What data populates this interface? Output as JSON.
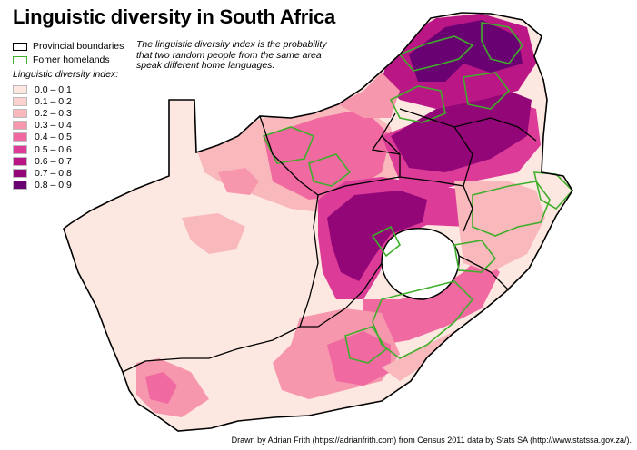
{
  "title": "Linguistic diversity in South Africa",
  "legend": {
    "provincial_label": "Provincial boundaries",
    "homelands_label": "Fomer homelands",
    "index_heading": "Linguistic diversity index:",
    "bins": [
      {
        "label": "0.0 – 0.1",
        "color": "#fde8e1"
      },
      {
        "label": "0.1 – 0.2",
        "color": "#fbd2d0"
      },
      {
        "label": "0.2 – 0.3",
        "color": "#f9b8bc"
      },
      {
        "label": "0.3 – 0.4",
        "color": "#f797ad"
      },
      {
        "label": "0.4 – 0.5",
        "color": "#f069a1"
      },
      {
        "label": "0.5 – 0.6",
        "color": "#dc3b97"
      },
      {
        "label": "0.6 – 0.7",
        "color": "#bb1686"
      },
      {
        "label": "0.7 – 0.8",
        "color": "#920678"
      },
      {
        "label": "0.8 – 0.9",
        "color": "#6a0172"
      }
    ]
  },
  "note": "The linguistic diversity index is the probability that two random people from the same area speak different home languages.",
  "credit": "Drawn by Adrian Frith (https://adrianfrith.com) from Census 2011 data by Stats SA (http://www.statssa.gov.za/).",
  "colors": {
    "provincial_boundary": "#000000",
    "homeland_boundary": "#3fae2a",
    "base": "#fde8e1"
  }
}
